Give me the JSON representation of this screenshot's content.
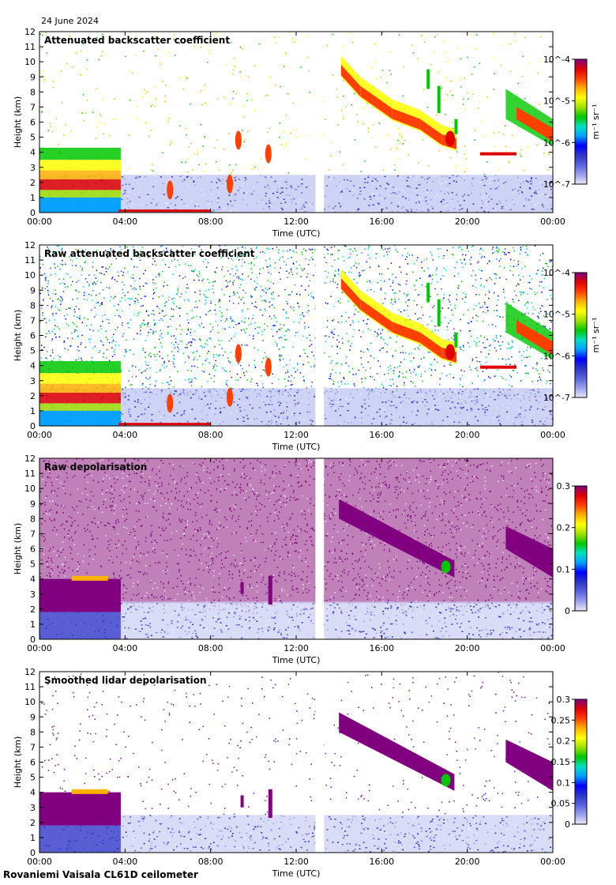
{
  "header": {
    "date": "24 June 2024"
  },
  "footer": {
    "site": "Rovaniemi Vaisala CL61D ceilometer"
  },
  "palette": [
    "#e9e9f8",
    "#9aa0ee",
    "#5a63de",
    "#2d36c6",
    "#0000ff",
    "#00a0ff",
    "#00e0c0",
    "#00c800",
    "#a0e000",
    "#ffff00",
    "#ffb000",
    "#ff4000",
    "#e00000",
    "#800080"
  ],
  "chart_data": [
    {
      "type": "heatmap",
      "title": "Attenuated backscatter coefficient",
      "xlabel": "Time (UTC)",
      "ylabel": "Height (km)",
      "xlim": [
        0,
        24
      ],
      "ylim": [
        0,
        12
      ],
      "xticks": [
        "00:00",
        "04:00",
        "08:00",
        "12:00",
        "16:00",
        "20:00",
        "00:00"
      ],
      "yticks": [
        "0",
        "1",
        "2",
        "3",
        "4",
        "5",
        "6",
        "7",
        "8",
        "9",
        "10",
        "11",
        "12"
      ],
      "data_gap_hours": [
        12.9,
        13.3
      ],
      "colorbar": {
        "scale": "log",
        "min": 1e-07,
        "max": 0.0001,
        "labels": [
          "10^-7",
          "10^-6",
          "10^-5",
          "10^-4"
        ],
        "unit": "m⁻¹ sr⁻¹"
      }
    },
    {
      "type": "heatmap",
      "title": "Raw attenuated backscatter coefficient",
      "xlabel": "Time (UTC)",
      "ylabel": "Height (km)",
      "xlim": [
        0,
        24
      ],
      "ylim": [
        0,
        12
      ],
      "xticks": [
        "00:00",
        "04:00",
        "08:00",
        "12:00",
        "16:00",
        "20:00",
        "00:00"
      ],
      "yticks": [
        "0",
        "1",
        "2",
        "3",
        "4",
        "5",
        "6",
        "7",
        "8",
        "9",
        "10",
        "11",
        "12"
      ],
      "data_gap_hours": [
        12.9,
        13.3
      ],
      "colorbar": {
        "scale": "log",
        "min": 1e-07,
        "max": 0.0001,
        "labels": [
          "10^-7",
          "10^-6",
          "10^-5",
          "10^-4"
        ],
        "unit": "m⁻¹ sr⁻¹"
      }
    },
    {
      "type": "heatmap",
      "title": "Raw depolarisation",
      "xlabel": "Time (UTC)",
      "ylabel": "Height (km)",
      "xlim": [
        0,
        24
      ],
      "ylim": [
        0,
        12
      ],
      "xticks": [
        "00:00",
        "04:00",
        "08:00",
        "12:00",
        "16:00",
        "20:00",
        "00:00"
      ],
      "yticks": [
        "0",
        "1",
        "2",
        "3",
        "4",
        "5",
        "6",
        "7",
        "8",
        "9",
        "10",
        "11",
        "12"
      ],
      "data_gap_hours": [
        12.9,
        13.3
      ],
      "colorbar": {
        "scale": "linear",
        "min": 0,
        "max": 0.3,
        "labels": [
          "0",
          "0.1",
          "0.2",
          "0.3"
        ],
        "unit": ""
      }
    },
    {
      "type": "heatmap",
      "title": "Smoothed lidar depolarisation",
      "xlabel": "Time (UTC)",
      "ylabel": "Height (km)",
      "xlim": [
        0,
        24
      ],
      "ylim": [
        0,
        12
      ],
      "xticks": [
        "00:00",
        "04:00",
        "08:00",
        "12:00",
        "16:00",
        "20:00",
        "00:00"
      ],
      "yticks": [
        "0",
        "1",
        "2",
        "3",
        "4",
        "5",
        "6",
        "7",
        "8",
        "9",
        "10",
        "11",
        "12"
      ],
      "data_gap_hours": [
        12.9,
        13.3
      ],
      "colorbar": {
        "scale": "linear",
        "min": 0,
        "max": 0.3,
        "labels": [
          "0",
          "0.05",
          "0.1",
          "0.15",
          "0.2",
          "0.25",
          "0.3"
        ],
        "unit": ""
      }
    }
  ]
}
